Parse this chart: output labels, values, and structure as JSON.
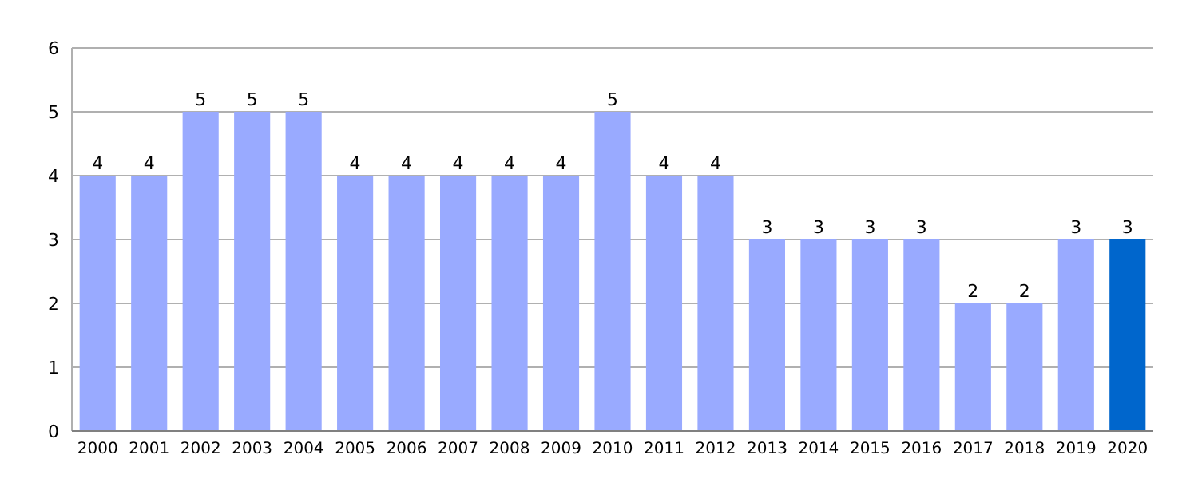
{
  "chart_data": {
    "type": "bar",
    "categories": [
      "2000",
      "2001",
      "2002",
      "2003",
      "2004",
      "2005",
      "2006",
      "2007",
      "2008",
      "2009",
      "2010",
      "2011",
      "2012",
      "2013",
      "2014",
      "2015",
      "2016",
      "2017",
      "2018",
      "2019",
      "2020"
    ],
    "values": [
      4,
      4,
      5,
      5,
      5,
      4,
      4,
      4,
      4,
      4,
      5,
      4,
      4,
      3,
      3,
      3,
      3,
      2,
      2,
      3,
      3
    ],
    "colors": [
      "#99aaff",
      "#99aaff",
      "#99aaff",
      "#99aaff",
      "#99aaff",
      "#99aaff",
      "#99aaff",
      "#99aaff",
      "#99aaff",
      "#99aaff",
      "#99aaff",
      "#99aaff",
      "#99aaff",
      "#99aaff",
      "#99aaff",
      "#99aaff",
      "#99aaff",
      "#99aaff",
      "#99aaff",
      "#99aaff",
      "#0066cc"
    ],
    "ylim": [
      0,
      6
    ],
    "yticks": [
      0,
      1,
      2,
      3,
      4,
      5,
      6
    ],
    "grid": "y",
    "data_labels": true
  }
}
